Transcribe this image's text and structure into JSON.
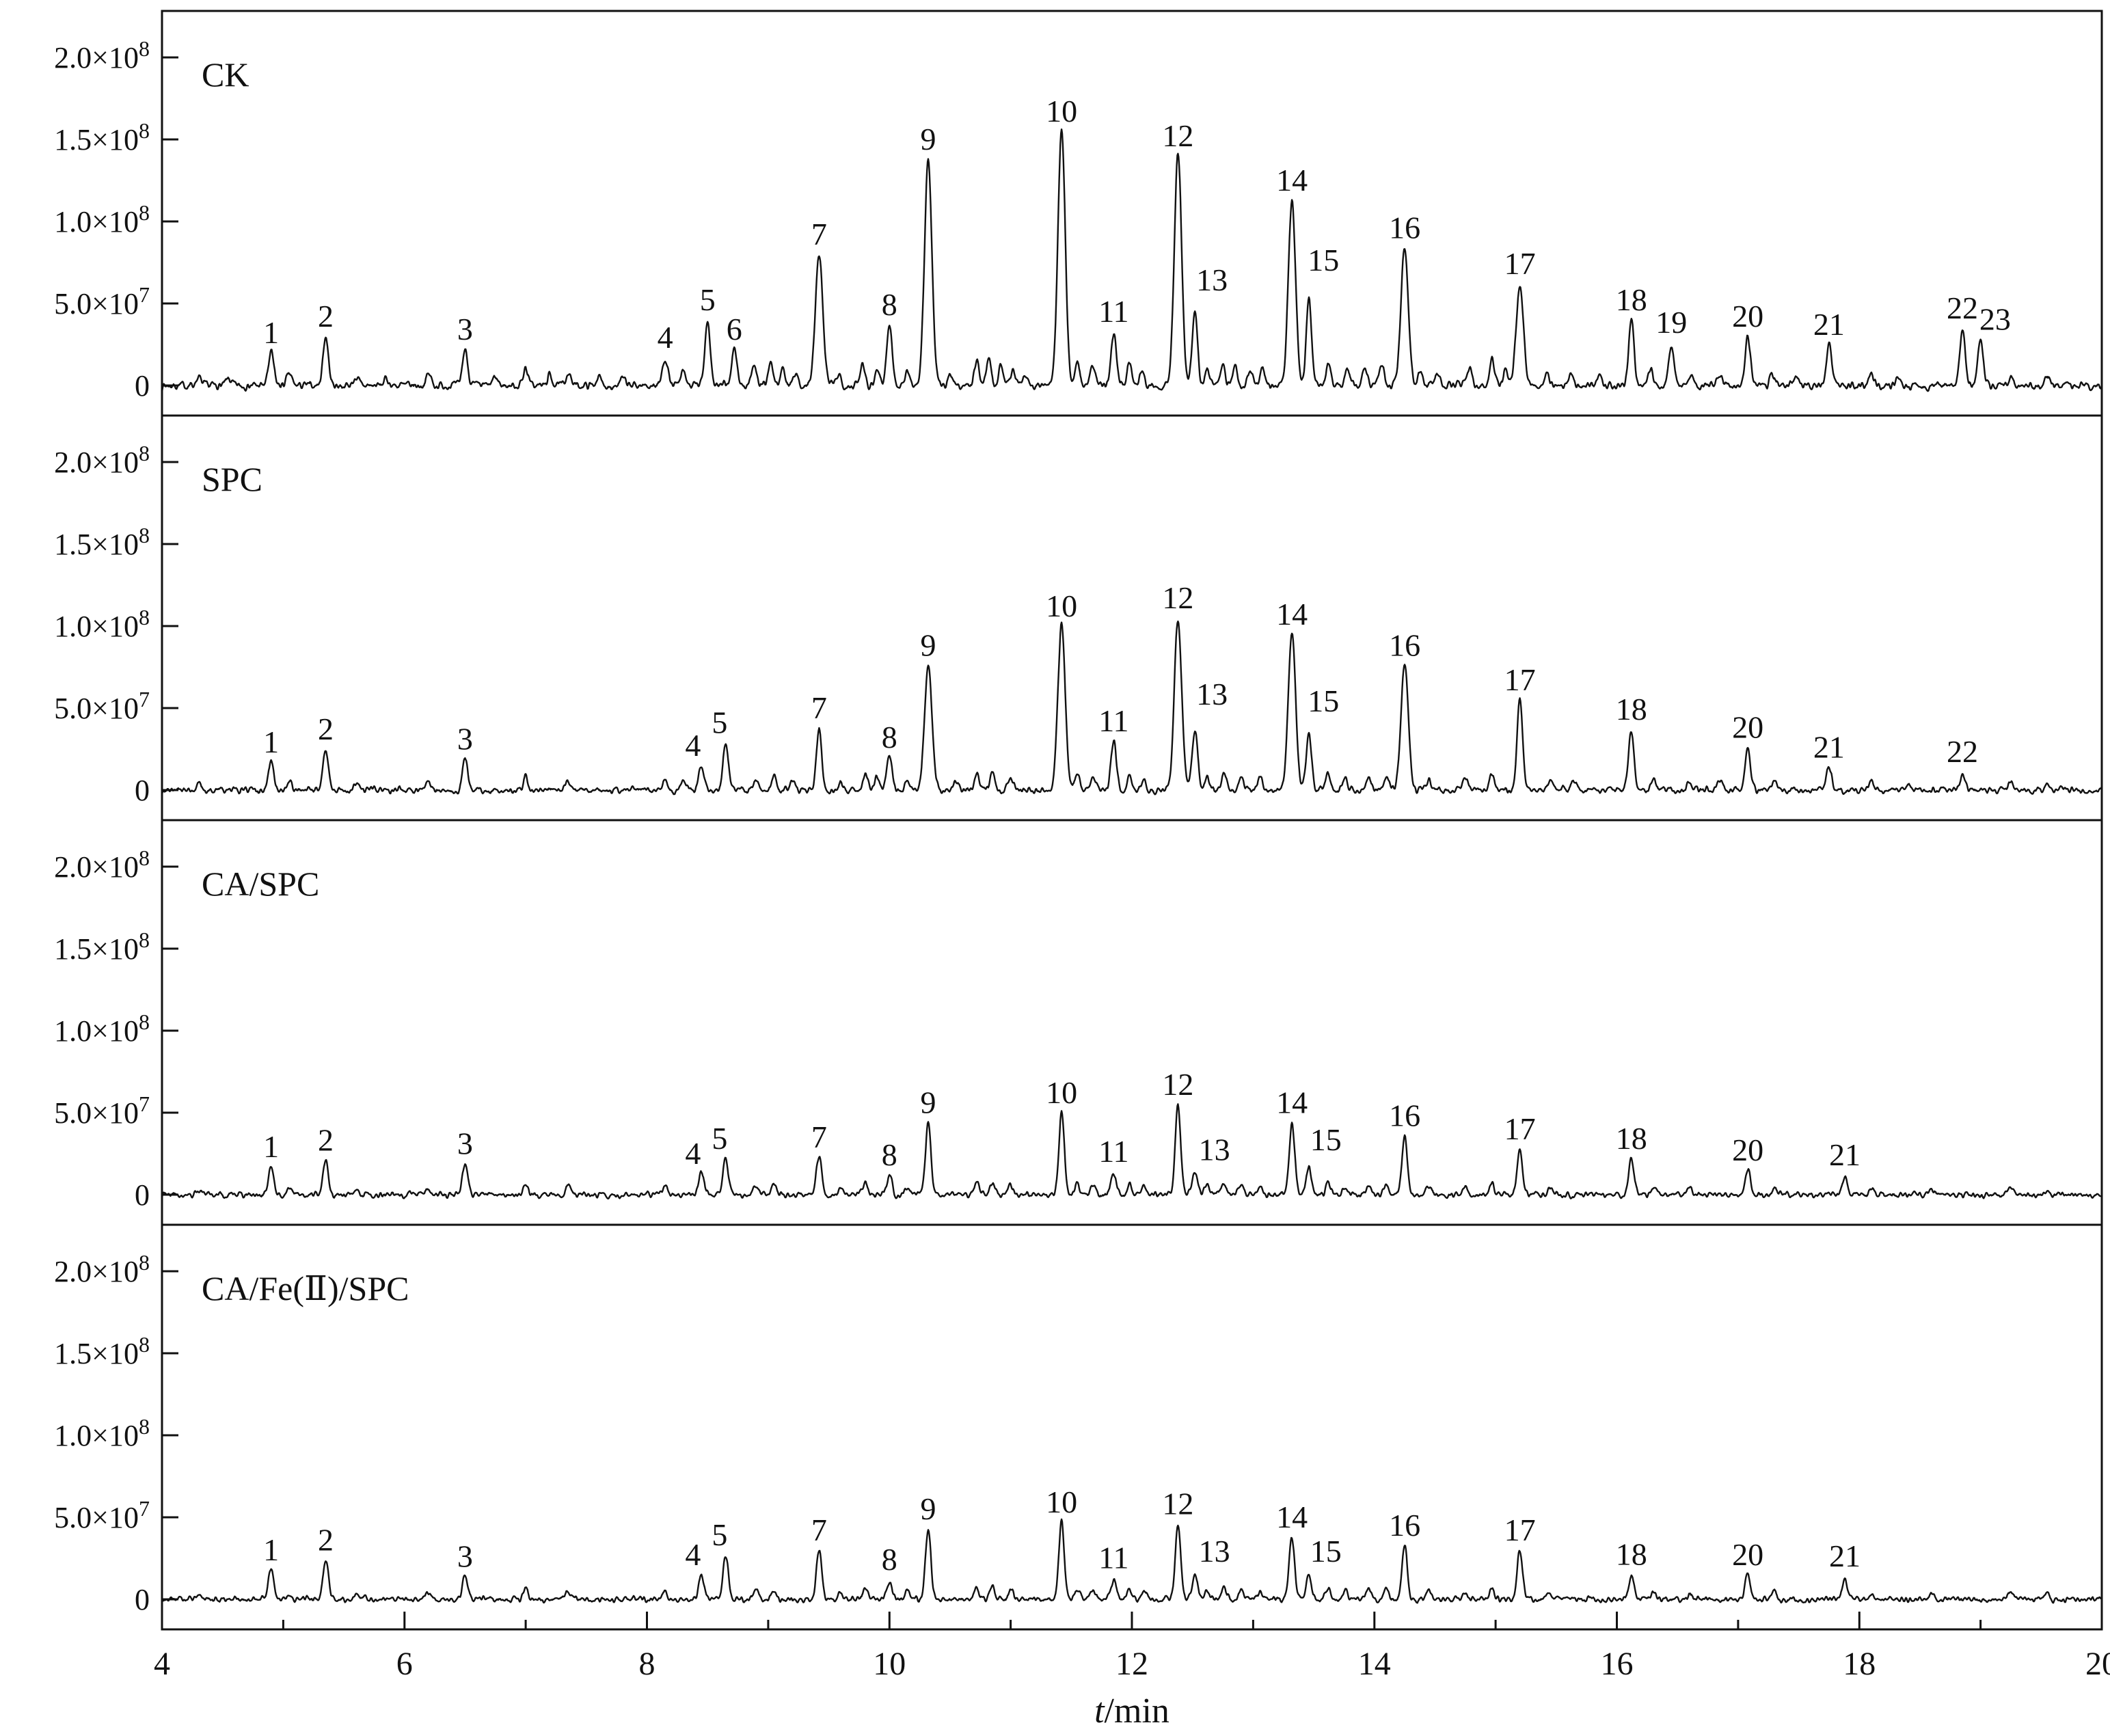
{
  "figure": {
    "xlabel": {
      "italic": "t",
      "rest": "/min"
    },
    "x_ticks": [
      4,
      6,
      8,
      10,
      12,
      14,
      16,
      18,
      20
    ],
    "x_minor_ticks": [
      5,
      7,
      9,
      11,
      13,
      15,
      17,
      19
    ],
    "y_ticks": [
      {
        "v": 0,
        "label": "0",
        "exp": ""
      },
      {
        "v": 50,
        "label": "5.0×10",
        "exp": "7"
      },
      {
        "v": 100,
        "label": "1.0×10",
        "exp": "8"
      },
      {
        "v": 150,
        "label": "1.5×10",
        "exp": "8"
      },
      {
        "v": 200,
        "label": "2.0×10",
        "exp": "8"
      }
    ]
  },
  "chart_data": {
    "type": "line",
    "x_range_min": [
      4,
      20
    ],
    "y_range": [
      0,
      200000000
    ],
    "height_unit": "1e6 abundance counts",
    "legend_position": "none",
    "grid": false,
    "panels": [
      {
        "label": "CK",
        "noise_amp": 4,
        "peaks": [
          {
            "n": "1",
            "t": 4.9,
            "h": 20
          },
          {
            "n": "2",
            "t": 5.35,
            "h": 30
          },
          {
            "n": "3",
            "t": 6.5,
            "h": 22
          },
          {
            "n": "4",
            "t": 8.15,
            "h": 17
          },
          {
            "n": "5",
            "t": 8.5,
            "h": 40
          },
          {
            "n": "6",
            "t": 8.72,
            "h": 22
          },
          {
            "n": "7",
            "t": 9.42,
            "h": 80
          },
          {
            "n": "8",
            "t": 10.0,
            "h": 37
          },
          {
            "n": "9",
            "t": 10.32,
            "h": 138
          },
          {
            "n": "10",
            "t": 11.42,
            "h": 155
          },
          {
            "n": "11",
            "t": 11.85,
            "h": 33
          },
          {
            "n": "12",
            "t": 12.38,
            "h": 140
          },
          {
            "n": "13",
            "t": 12.52,
            "h": 44,
            "lt": 12.66,
            "lh": 58
          },
          {
            "n": "14",
            "t": 13.32,
            "h": 113
          },
          {
            "n": "15",
            "t": 13.46,
            "h": 52,
            "lt": 13.58,
            "lh": 70
          },
          {
            "n": "16",
            "t": 14.25,
            "h": 84
          },
          {
            "n": "17",
            "t": 15.2,
            "h": 62
          },
          {
            "n": "18",
            "t": 16.12,
            "h": 40
          },
          {
            "n": "19",
            "t": 16.45,
            "h": 24,
            "lh": 32
          },
          {
            "n": "20",
            "t": 17.08,
            "h": 30
          },
          {
            "n": "21",
            "t": 17.75,
            "h": 25
          },
          {
            "n": "22",
            "t": 18.85,
            "h": 35
          },
          {
            "n": "23",
            "t": 19.0,
            "h": 26,
            "lt": 19.12,
            "lh": 34
          }
        ],
        "minor": [
          [
            4.3,
            5
          ],
          [
            4.55,
            4
          ],
          [
            5.05,
            7
          ],
          [
            5.6,
            5
          ],
          [
            5.85,
            4
          ],
          [
            6.2,
            7
          ],
          [
            6.75,
            5
          ],
          [
            7.0,
            11
          ],
          [
            7.2,
            6
          ],
          [
            7.35,
            8
          ],
          [
            7.6,
            5
          ],
          [
            7.8,
            4
          ],
          [
            8.3,
            8
          ],
          [
            8.88,
            12
          ],
          [
            9.02,
            13
          ],
          [
            9.12,
            10
          ],
          [
            9.22,
            8
          ],
          [
            9.58,
            7
          ],
          [
            9.78,
            14
          ],
          [
            9.9,
            10
          ],
          [
            10.15,
            9
          ],
          [
            10.5,
            7
          ],
          [
            10.72,
            15
          ],
          [
            10.82,
            17
          ],
          [
            10.92,
            13
          ],
          [
            11.02,
            10
          ],
          [
            11.12,
            7
          ],
          [
            11.55,
            14
          ],
          [
            11.68,
            12
          ],
          [
            11.98,
            14
          ],
          [
            12.08,
            10
          ],
          [
            12.62,
            10
          ],
          [
            12.75,
            14
          ],
          [
            12.85,
            12
          ],
          [
            12.98,
            9
          ],
          [
            13.08,
            11
          ],
          [
            13.62,
            14
          ],
          [
            13.78,
            9
          ],
          [
            13.92,
            11
          ],
          [
            14.06,
            12
          ],
          [
            14.38,
            9
          ],
          [
            14.52,
            7
          ],
          [
            14.78,
            10
          ],
          [
            14.97,
            16
          ],
          [
            15.08,
            10
          ],
          [
            15.42,
            7
          ],
          [
            15.62,
            8
          ],
          [
            15.85,
            6
          ],
          [
            16.28,
            10
          ],
          [
            16.62,
            7
          ],
          [
            16.85,
            6
          ],
          [
            17.28,
            7
          ],
          [
            17.48,
            5
          ],
          [
            18.1,
            6
          ],
          [
            18.32,
            5
          ],
          [
            19.25,
            6
          ],
          [
            19.55,
            5
          ]
        ]
      },
      {
        "label": "SPC",
        "noise_amp": 3.4,
        "peaks": [
          {
            "n": "1",
            "t": 4.9,
            "h": 17
          },
          {
            "n": "2",
            "t": 5.35,
            "h": 25
          },
          {
            "n": "3",
            "t": 6.5,
            "h": 19
          },
          {
            "n": "4",
            "t": 8.45,
            "h": 15,
            "lt": 8.38
          },
          {
            "n": "5",
            "t": 8.65,
            "h": 29,
            "lt": 8.6
          },
          {
            "n": "7",
            "t": 9.42,
            "h": 38
          },
          {
            "n": "8",
            "t": 10.0,
            "h": 20
          },
          {
            "n": "9",
            "t": 10.32,
            "h": 76
          },
          {
            "n": "10",
            "t": 11.42,
            "h": 100
          },
          {
            "n": "11",
            "t": 11.85,
            "h": 30
          },
          {
            "n": "12",
            "t": 12.38,
            "h": 105
          },
          {
            "n": "13",
            "t": 12.52,
            "h": 38,
            "lt": 12.66,
            "lh": 52
          },
          {
            "n": "14",
            "t": 13.32,
            "h": 95
          },
          {
            "n": "15",
            "t": 13.46,
            "h": 33,
            "lt": 13.58,
            "lh": 48
          },
          {
            "n": "16",
            "t": 14.25,
            "h": 76
          },
          {
            "n": "17",
            "t": 15.2,
            "h": 55
          },
          {
            "n": "18",
            "t": 16.12,
            "h": 37
          },
          {
            "n": "20",
            "t": 17.08,
            "h": 26
          },
          {
            "n": "21",
            "t": 17.75,
            "h": 14
          },
          {
            "n": "22",
            "t": 18.85,
            "h": 9,
            "lh": 17
          }
        ],
        "minor": [
          [
            4.3,
            4
          ],
          [
            5.05,
            5
          ],
          [
            5.6,
            4
          ],
          [
            6.2,
            5
          ],
          [
            7.0,
            8
          ],
          [
            7.35,
            6
          ],
          [
            8.15,
            6
          ],
          [
            8.3,
            6
          ],
          [
            8.9,
            8
          ],
          [
            9.05,
            9
          ],
          [
            9.2,
            6
          ],
          [
            9.6,
            5
          ],
          [
            9.8,
            10
          ],
          [
            9.9,
            8
          ],
          [
            10.15,
            7
          ],
          [
            10.55,
            6
          ],
          [
            10.72,
            10
          ],
          [
            10.85,
            12
          ],
          [
            11.0,
            8
          ],
          [
            11.55,
            10
          ],
          [
            11.68,
            9
          ],
          [
            11.98,
            9
          ],
          [
            12.1,
            7
          ],
          [
            12.62,
            8
          ],
          [
            12.76,
            10
          ],
          [
            12.9,
            8
          ],
          [
            13.06,
            8
          ],
          [
            13.62,
            10
          ],
          [
            13.76,
            7
          ],
          [
            13.95,
            8
          ],
          [
            14.1,
            9
          ],
          [
            14.45,
            7
          ],
          [
            14.75,
            8
          ],
          [
            14.97,
            11
          ],
          [
            15.45,
            6
          ],
          [
            15.65,
            6
          ],
          [
            16.3,
            7
          ],
          [
            16.6,
            5
          ],
          [
            16.85,
            5
          ],
          [
            17.3,
            5
          ],
          [
            18.1,
            5
          ],
          [
            18.4,
            4
          ],
          [
            19.25,
            5
          ],
          [
            19.55,
            4
          ]
        ]
      },
      {
        "label": "CA/SPC",
        "noise_amp": 3,
        "peaks": [
          {
            "n": "1",
            "t": 4.9,
            "h": 17
          },
          {
            "n": "2",
            "t": 5.35,
            "h": 21
          },
          {
            "n": "3",
            "t": 6.5,
            "h": 19
          },
          {
            "n": "4",
            "t": 8.45,
            "h": 13,
            "lt": 8.38
          },
          {
            "n": "5",
            "t": 8.65,
            "h": 22,
            "lt": 8.6
          },
          {
            "n": "7",
            "t": 9.42,
            "h": 23
          },
          {
            "n": "8",
            "t": 10.0,
            "h": 11,
            "lh": 18
          },
          {
            "n": "9",
            "t": 10.32,
            "h": 44
          },
          {
            "n": "10",
            "t": 11.42,
            "h": 50
          },
          {
            "n": "11",
            "t": 11.85,
            "h": 12,
            "lh": 20
          },
          {
            "n": "12",
            "t": 12.38,
            "h": 55
          },
          {
            "n": "13",
            "t": 12.52,
            "h": 14,
            "lt": 12.68,
            "lh": 21
          },
          {
            "n": "14",
            "t": 13.32,
            "h": 44
          },
          {
            "n": "15",
            "t": 13.46,
            "h": 17,
            "lt": 13.6,
            "lh": 27
          },
          {
            "n": "16",
            "t": 14.25,
            "h": 36
          },
          {
            "n": "17",
            "t": 15.2,
            "h": 28
          },
          {
            "n": "18",
            "t": 16.12,
            "h": 22
          },
          {
            "n": "20",
            "t": 17.08,
            "h": 15
          },
          {
            "n": "21",
            "t": 17.88,
            "h": 10,
            "lh": 18
          }
        ],
        "minor": [
          [
            4.3,
            3
          ],
          [
            5.05,
            4
          ],
          [
            5.6,
            3
          ],
          [
            6.2,
            4
          ],
          [
            7.0,
            7
          ],
          [
            7.35,
            5
          ],
          [
            8.15,
            5
          ],
          [
            8.9,
            6
          ],
          [
            9.05,
            6
          ],
          [
            9.6,
            4
          ],
          [
            9.8,
            7
          ],
          [
            10.15,
            5
          ],
          [
            10.72,
            7
          ],
          [
            10.85,
            8
          ],
          [
            11.0,
            6
          ],
          [
            11.55,
            6
          ],
          [
            11.68,
            6
          ],
          [
            11.98,
            6
          ],
          [
            12.1,
            5
          ],
          [
            12.62,
            5
          ],
          [
            12.76,
            7
          ],
          [
            12.9,
            6
          ],
          [
            13.06,
            5
          ],
          [
            13.62,
            7
          ],
          [
            13.76,
            5
          ],
          [
            13.95,
            6
          ],
          [
            14.1,
            6
          ],
          [
            14.45,
            5
          ],
          [
            14.75,
            5
          ],
          [
            14.97,
            7
          ],
          [
            15.45,
            4
          ],
          [
            16.3,
            5
          ],
          [
            16.6,
            4
          ],
          [
            17.3,
            4
          ],
          [
            18.1,
            4
          ],
          [
            18.6,
            3
          ],
          [
            19.25,
            4
          ],
          [
            19.55,
            3
          ]
        ]
      },
      {
        "label": "CA/Fe(Ⅱ)/SPC",
        "noise_amp": 3,
        "peaks": [
          {
            "n": "1",
            "t": 4.9,
            "h": 18
          },
          {
            "n": "2",
            "t": 5.35,
            "h": 24
          },
          {
            "n": "3",
            "t": 6.5,
            "h": 14
          },
          {
            "n": "4",
            "t": 8.45,
            "h": 15,
            "lt": 8.38
          },
          {
            "n": "5",
            "t": 8.65,
            "h": 27,
            "lt": 8.6
          },
          {
            "n": "7",
            "t": 9.42,
            "h": 30
          },
          {
            "n": "8",
            "t": 10.0,
            "h": 11,
            "lh": 18
          },
          {
            "n": "9",
            "t": 10.32,
            "h": 43
          },
          {
            "n": "10",
            "t": 11.42,
            "h": 47
          },
          {
            "n": "11",
            "t": 11.85,
            "h": 12,
            "lh": 19
          },
          {
            "n": "12",
            "t": 12.38,
            "h": 46
          },
          {
            "n": "13",
            "t": 12.52,
            "h": 15,
            "lt": 12.68,
            "lh": 23
          },
          {
            "n": "14",
            "t": 13.32,
            "h": 38
          },
          {
            "n": "15",
            "t": 13.46,
            "h": 14,
            "lt": 13.6,
            "lh": 23
          },
          {
            "n": "16",
            "t": 14.25,
            "h": 33
          },
          {
            "n": "17",
            "t": 15.2,
            "h": 30
          },
          {
            "n": "18",
            "t": 16.12,
            "h": 14,
            "lh": 21
          },
          {
            "n": "20",
            "t": 17.08,
            "h": 15
          },
          {
            "n": "21",
            "t": 17.88,
            "h": 12,
            "lh": 20
          }
        ],
        "minor": [
          [
            4.3,
            3
          ],
          [
            5.05,
            4
          ],
          [
            5.6,
            3
          ],
          [
            6.2,
            4
          ],
          [
            7.0,
            7
          ],
          [
            7.35,
            5
          ],
          [
            8.15,
            5
          ],
          [
            8.9,
            6
          ],
          [
            9.05,
            6
          ],
          [
            9.6,
            4
          ],
          [
            9.8,
            7
          ],
          [
            10.15,
            5
          ],
          [
            10.72,
            7
          ],
          [
            10.85,
            8
          ],
          [
            11.0,
            6
          ],
          [
            11.55,
            6
          ],
          [
            11.68,
            6
          ],
          [
            11.98,
            6
          ],
          [
            12.1,
            5
          ],
          [
            12.62,
            5
          ],
          [
            12.76,
            7
          ],
          [
            12.9,
            6
          ],
          [
            13.06,
            5
          ],
          [
            13.62,
            7
          ],
          [
            13.76,
            5
          ],
          [
            13.95,
            6
          ],
          [
            14.1,
            6
          ],
          [
            14.45,
            5
          ],
          [
            14.75,
            5
          ],
          [
            14.97,
            7
          ],
          [
            15.45,
            4
          ],
          [
            16.3,
            5
          ],
          [
            16.6,
            4
          ],
          [
            17.3,
            4
          ],
          [
            18.1,
            4
          ],
          [
            18.6,
            3
          ],
          [
            19.25,
            4
          ],
          [
            19.55,
            3
          ]
        ]
      }
    ]
  }
}
